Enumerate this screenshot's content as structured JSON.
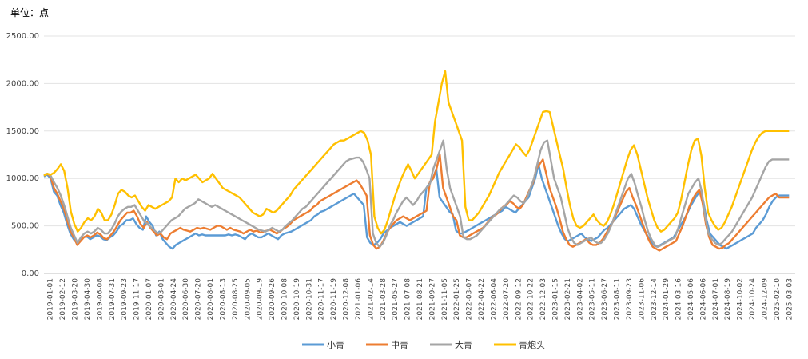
{
  "unit_label": "单位：点",
  "chart_data": {
    "type": "line",
    "title": "",
    "ylim": [
      0,
      2500
    ],
    "yticks": [
      "0.00",
      "500.00",
      "1000.00",
      "1500.00",
      "2000.00",
      "2500.00"
    ],
    "grid": true,
    "legend_position": "bottom",
    "x_tick_labels": [
      "2019-01-01",
      "2019-02-12",
      "2019-03-20",
      "2019-04-30",
      "2019-06-08",
      "2019-07-31",
      "2019-09-23",
      "2019-11-17",
      "2020-01-07",
      "2020-03-01",
      "2020-04-24",
      "2020-06-30",
      "2020-07-20",
      "2020-08-01",
      "2020-08-13",
      "2020-08-25",
      "2020-09-05",
      "2020-09-19",
      "2020-09-26",
      "2020-10-08",
      "2020-10-19",
      "2020-10-31",
      "2020-11-17",
      "2020-11-19",
      "2020-12-08",
      "2021-01-06",
      "2021-02-14",
      "2021-03-28",
      "2021-05-27",
      "2021-07-08",
      "2021-08-21",
      "2021-09-27",
      "2021-11-05",
      "2022-01-25",
      "2022-03-07",
      "2022-04-22",
      "2022-06-04",
      "2022-07-20",
      "2022-09-12",
      "2022-10-22",
      "2022-12-03",
      "2023-01-15",
      "2023-02-21",
      "2023-04-02",
      "2023-05-11",
      "2023-06-27",
      "2023-08-11",
      "2023-09-23",
      "2023-11-06",
      "2023-12-14",
      "2024-01-29",
      "2024-03-16",
      "2024-05-06",
      "2024-06-06",
      "2024-07-01",
      "2024-08-19",
      "2024-10-02",
      "2024-10-24",
      "2024-12-09",
      "2025-02-10",
      "2025-03-03"
    ],
    "series": [
      {
        "name": "小青",
        "color": "#5b9bd5",
        "values": [
          1020,
          1040,
          1000,
          860,
          820,
          720,
          640,
          520,
          420,
          360,
          320,
          350,
          380,
          390,
          360,
          380,
          400,
          390,
          360,
          350,
          380,
          400,
          440,
          500,
          520,
          560,
          560,
          580,
          520,
          480,
          460,
          600,
          540,
          500,
          400,
          440,
          360,
          320,
          280,
          260,
          300,
          320,
          340,
          360,
          380,
          400,
          420,
          400,
          410,
          400,
          400,
          400,
          400,
          400,
          400,
          400,
          410,
          400,
          410,
          400,
          380,
          360,
          400,
          420,
          400,
          380,
          380,
          400,
          420,
          400,
          380,
          360,
          400,
          420,
          430,
          440,
          460,
          480,
          500,
          520,
          540,
          560,
          600,
          620,
          650,
          660,
          680,
          700,
          720,
          740,
          760,
          780,
          800,
          820,
          840,
          800,
          760,
          720,
          380,
          320,
          300,
          320,
          360,
          420,
          450,
          480,
          500,
          520,
          540,
          520,
          500,
          520,
          540,
          560,
          580,
          600,
          900,
          950,
          1000,
          1100,
          800,
          750,
          700,
          650,
          620,
          450,
          420,
          420,
          440,
          460,
          480,
          500,
          520,
          540,
          560,
          580,
          600,
          620,
          640,
          660,
          700,
          680,
          660,
          640,
          680,
          720,
          760,
          800,
          900,
          1000,
          1150,
          1000,
          900,
          800,
          700,
          600,
          500,
          420,
          360,
          340,
          360,
          380,
          400,
          420,
          380,
          360,
          340,
          360,
          380,
          420,
          460,
          480,
          520,
          560,
          600,
          640,
          680,
          700,
          720,
          680,
          600,
          520,
          460,
          400,
          340,
          300,
          280,
          300,
          320,
          340,
          360,
          380,
          440,
          500,
          560,
          620,
          700,
          760,
          820,
          860,
          760,
          560,
          420,
          380,
          340,
          300,
          280,
          260,
          280,
          300,
          320,
          340,
          360,
          380,
          400,
          420,
          480,
          520,
          560,
          620,
          700,
          760,
          800,
          820,
          820,
          820,
          820
        ]
      },
      {
        "name": "中青",
        "color": "#ed7d31",
        "values": [
          1030,
          1050,
          1020,
          900,
          840,
          760,
          680,
          560,
          440,
          380,
          300,
          340,
          380,
          400,
          380,
          400,
          430,
          410,
          370,
          360,
          400,
          440,
          500,
          560,
          600,
          640,
          640,
          660,
          600,
          520,
          480,
          540,
          480,
          440,
          400,
          420,
          380,
          360,
          420,
          440,
          460,
          480,
          460,
          450,
          440,
          460,
          480,
          470,
          480,
          470,
          460,
          480,
          500,
          500,
          480,
          460,
          480,
          460,
          450,
          440,
          420,
          440,
          460,
          440,
          450,
          430,
          440,
          450,
          460,
          440,
          420,
          440,
          470,
          490,
          520,
          560,
          580,
          600,
          620,
          640,
          660,
          700,
          720,
          760,
          780,
          800,
          820,
          840,
          860,
          880,
          900,
          920,
          940,
          960,
          980,
          940,
          880,
          820,
          400,
          300,
          260,
          280,
          340,
          420,
          480,
          520,
          560,
          580,
          600,
          580,
          560,
          580,
          600,
          620,
          640,
          660,
          960,
          1000,
          1100,
          1250,
          900,
          800,
          700,
          600,
          560,
          400,
          380,
          380,
          400,
          420,
          440,
          460,
          480,
          520,
          560,
          600,
          620,
          660,
          700,
          720,
          760,
          740,
          700,
          680,
          720,
          800,
          880,
          950,
          1100,
          1150,
          1200,
          1050,
          900,
          800,
          700,
          580,
          440,
          360,
          300,
          280,
          300,
          320,
          340,
          360,
          320,
          300,
          300,
          320,
          360,
          420,
          480,
          540,
          620,
          700,
          780,
          860,
          900,
          800,
          720,
          620,
          520,
          420,
          340,
          280,
          260,
          240,
          260,
          280,
          300,
          320,
          340,
          420,
          500,
          600,
          700,
          780,
          840,
          880,
          740,
          520,
          380,
          300,
          280,
          260,
          270,
          300,
          320,
          360,
          400,
          440,
          480,
          520,
          560,
          600,
          640,
          680,
          720,
          760,
          800,
          820,
          840,
          800,
          800,
          800,
          800
        ]
      },
      {
        "name": "大青",
        "color": "#a5a5a5",
        "values": [
          1040,
          1050,
          1030,
          960,
          900,
          820,
          720,
          600,
          480,
          400,
          320,
          380,
          420,
          440,
          420,
          440,
          480,
          460,
          420,
          420,
          460,
          520,
          600,
          650,
          680,
          700,
          700,
          720,
          660,
          600,
          540,
          520,
          480,
          450,
          420,
          440,
          480,
          520,
          560,
          580,
          600,
          640,
          680,
          700,
          720,
          740,
          780,
          760,
          740,
          720,
          700,
          720,
          700,
          680,
          660,
          640,
          620,
          600,
          580,
          560,
          540,
          520,
          500,
          480,
          460,
          450,
          440,
          460,
          480,
          460,
          440,
          460,
          500,
          530,
          560,
          600,
          640,
          680,
          700,
          740,
          780,
          820,
          860,
          900,
          940,
          980,
          1020,
          1060,
          1100,
          1140,
          1180,
          1200,
          1210,
          1220,
          1220,
          1180,
          1100,
          1000,
          420,
          320,
          280,
          320,
          400,
          500,
          560,
          640,
          700,
          760,
          800,
          760,
          720,
          760,
          820,
          860,
          900,
          940,
          1100,
          1200,
          1300,
          1400,
          1100,
          900,
          800,
          700,
          600,
          380,
          360,
          360,
          380,
          400,
          440,
          480,
          520,
          560,
          600,
          640,
          680,
          700,
          740,
          780,
          820,
          800,
          760,
          740,
          800,
          900,
          1000,
          1150,
          1300,
          1380,
          1400,
          1200,
          1000,
          900,
          800,
          640,
          480,
          380,
          320,
          300,
          320,
          340,
          360,
          380,
          340,
          320,
          320,
          360,
          420,
          500,
          600,
          700,
          800,
          900,
          1000,
          1050,
          950,
          820,
          700,
          560,
          440,
          360,
          300,
          280,
          300,
          320,
          340,
          360,
          380,
          480,
          600,
          720,
          840,
          900,
          960,
          1000,
          860,
          600,
          420,
          360,
          320,
          300,
          320,
          360,
          400,
          440,
          500,
          560,
          620,
          680,
          740,
          800,
          880,
          960,
          1040,
          1120,
          1180,
          1200,
          1200,
          1200,
          1200,
          1200,
          1200
        ]
      },
      {
        "name": "青炮头",
        "color": "#ffc000",
        "values": [
          1030,
          1050,
          1040,
          1060,
          1100,
          1150,
          1080,
          900,
          650,
          520,
          440,
          480,
          540,
          580,
          560,
          600,
          680,
          640,
          560,
          560,
          620,
          720,
          840,
          880,
          860,
          820,
          800,
          820,
          760,
          700,
          660,
          720,
          700,
          680,
          700,
          720,
          740,
          760,
          800,
          1000,
          960,
          1000,
          980,
          1000,
          1020,
          1040,
          1000,
          960,
          980,
          1000,
          1050,
          1000,
          950,
          900,
          880,
          860,
          840,
          820,
          800,
          760,
          720,
          680,
          640,
          620,
          600,
          620,
          680,
          660,
          640,
          660,
          700,
          740,
          780,
          820,
          880,
          920,
          960,
          1000,
          1040,
          1080,
          1120,
          1160,
          1200,
          1240,
          1280,
          1320,
          1360,
          1380,
          1400,
          1400,
          1420,
          1440,
          1460,
          1480,
          1500,
          1480,
          1400,
          1250,
          600,
          480,
          420,
          460,
          560,
          680,
          800,
          900,
          1000,
          1080,
          1150,
          1080,
          1000,
          1050,
          1100,
          1150,
          1200,
          1250,
          1600,
          1800,
          2000,
          2130,
          1800,
          1700,
          1600,
          1500,
          1400,
          700,
          560,
          560,
          600,
          640,
          700,
          760,
          820,
          900,
          980,
          1060,
          1120,
          1180,
          1240,
          1300,
          1360,
          1330,
          1280,
          1240,
          1300,
          1400,
          1500,
          1600,
          1700,
          1710,
          1700,
          1550,
          1400,
          1250,
          1100,
          900,
          720,
          580,
          500,
          480,
          500,
          540,
          580,
          620,
          560,
          520,
          500,
          540,
          620,
          720,
          840,
          960,
          1080,
          1200,
          1300,
          1350,
          1250,
          1100,
          950,
          800,
          680,
          560,
          480,
          440,
          460,
          500,
          540,
          580,
          640,
          780,
          960,
          1140,
          1300,
          1400,
          1420,
          1240,
          900,
          640,
          560,
          500,
          460,
          480,
          540,
          620,
          700,
          800,
          900,
          1000,
          1100,
          1200,
          1300,
          1380,
          1440,
          1480,
          1500,
          1500,
          1500,
          1500,
          1500,
          1500,
          1500,
          1500
        ]
      }
    ]
  }
}
